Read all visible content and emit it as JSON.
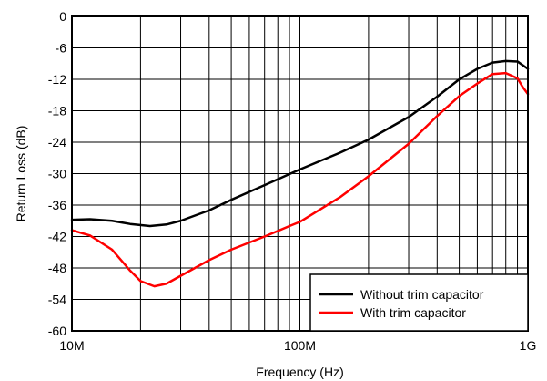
{
  "chart_data": {
    "type": "line",
    "xlabel": "Frequency (Hz)",
    "ylabel": "Return Loss (dB)",
    "xscale": "log",
    "xlim": [
      10000000,
      1000000000
    ],
    "ylim": [
      -60,
      0
    ],
    "grid": true,
    "legend_position": "bottom-right",
    "x_ticks": [
      {
        "value": 10000000,
        "label": "10M"
      },
      {
        "value": 100000000,
        "label": "100M"
      },
      {
        "value": 1000000000,
        "label": "1G"
      }
    ],
    "y_ticks": [
      {
        "value": 0,
        "label": "0"
      },
      {
        "value": -6,
        "label": "-6"
      },
      {
        "value": -12,
        "label": "-12"
      },
      {
        "value": -18,
        "label": "-18"
      },
      {
        "value": -24,
        "label": "-24"
      },
      {
        "value": -30,
        "label": "-30"
      },
      {
        "value": -36,
        "label": "-36"
      },
      {
        "value": -42,
        "label": "-42"
      },
      {
        "value": -48,
        "label": "-48"
      },
      {
        "value": -54,
        "label": "-54"
      },
      {
        "value": -60,
        "label": "-60"
      }
    ],
    "series": [
      {
        "name": "Without trim capacitor",
        "color": "#000000",
        "x": [
          10000000,
          12000000,
          15000000,
          18000000,
          22000000,
          26000000,
          30000000,
          40000000,
          50000000,
          70000000,
          100000000,
          150000000,
          200000000,
          300000000,
          400000000,
          500000000,
          600000000,
          700000000,
          800000000,
          900000000,
          1000000000
        ],
        "y": [
          -38.8,
          -38.7,
          -39.0,
          -39.6,
          -40.0,
          -39.7,
          -39.0,
          -37.0,
          -35.0,
          -32.2,
          -29.2,
          -26.0,
          -23.5,
          -19.2,
          -15.3,
          -12.0,
          -10.0,
          -8.8,
          -8.5,
          -8.6,
          -10.0
        ]
      },
      {
        "name": "With trim capacitor",
        "color": "#ff0000",
        "x": [
          10000000,
          12000000,
          15000000,
          18000000,
          20000000,
          23000000,
          26000000,
          30000000,
          40000000,
          50000000,
          70000000,
          90000000,
          100000000,
          150000000,
          200000000,
          300000000,
          400000000,
          500000000,
          600000000,
          700000000,
          800000000,
          900000000,
          950000000,
          1000000000
        ],
        "y": [
          -40.8,
          -41.8,
          -44.5,
          -48.5,
          -50.5,
          -51.5,
          -51.0,
          -49.5,
          -46.5,
          -44.5,
          -42.0,
          -40.0,
          -39.2,
          -34.5,
          -30.5,
          -24.3,
          -19.0,
          -15.2,
          -12.8,
          -11.0,
          -10.8,
          -11.8,
          -13.5,
          -14.8
        ]
      }
    ]
  }
}
